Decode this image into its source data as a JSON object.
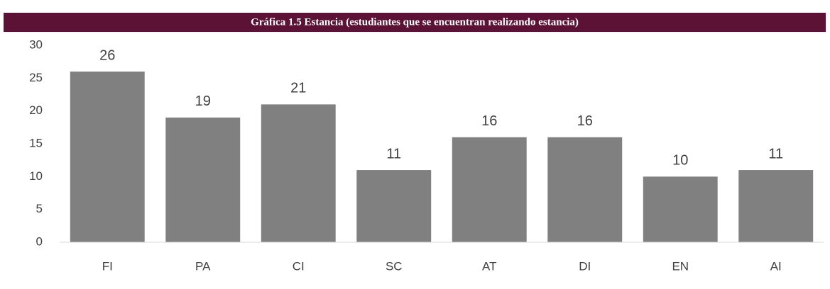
{
  "chart_data": {
    "type": "bar",
    "title": "Gráfica  1.5 Estancia (estudiantes que se encuentran realizando estancia)",
    "categories": [
      "FI",
      "PA",
      "CI",
      "SC",
      "AT",
      "DI",
      "EN",
      "AI"
    ],
    "values": [
      26,
      19,
      21,
      11,
      16,
      16,
      10,
      11
    ],
    "color": "#808080",
    "ylim": [
      0,
      30
    ],
    "yticks": [
      0,
      5,
      10,
      15,
      20,
      25,
      30
    ],
    "grid": false
  }
}
